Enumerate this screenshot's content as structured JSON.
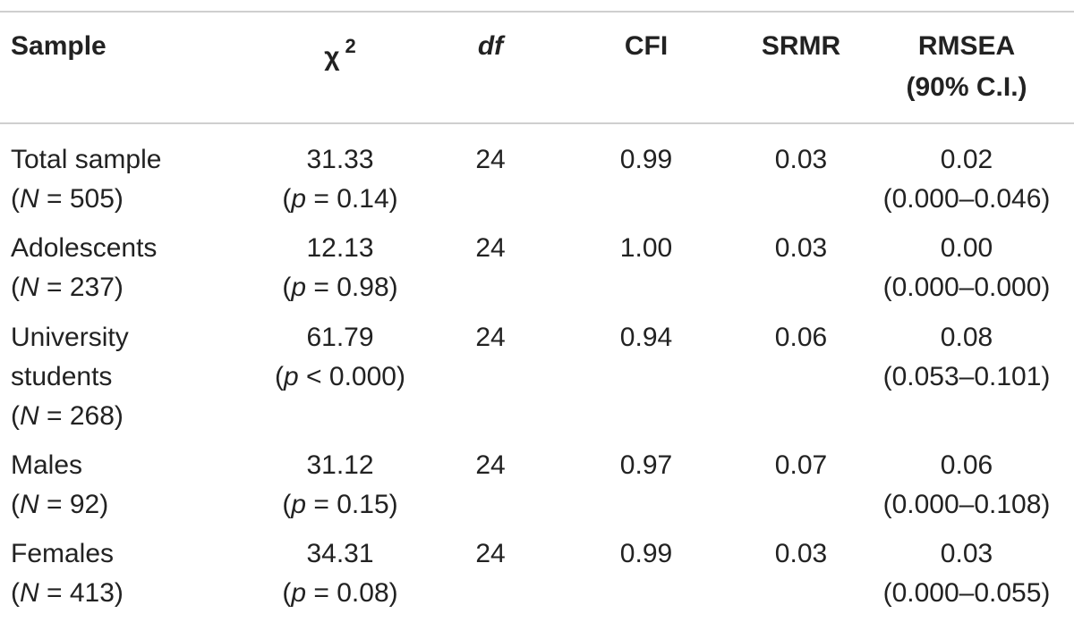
{
  "table": {
    "header": {
      "sample": "Sample",
      "chi2": "χ",
      "chi2_sup": "2",
      "df": "df",
      "cfi": "CFI",
      "srmr": "SRMR",
      "rmsea_line1": "RMSEA",
      "rmsea_line2": "(90% C.I.)"
    },
    "rows": [
      {
        "sample_lines": [
          "Total sample",
          "(N = 505)"
        ],
        "chi2": "31.33",
        "chi2_p": "(p = 0.14)",
        "df": "24",
        "cfi": "0.99",
        "srmr": "0.03",
        "rmsea": "0.02",
        "rmsea_ci": "(0.000–0.046)"
      },
      {
        "sample_lines": [
          "Adolescents",
          "(N = 237)"
        ],
        "chi2": "12.13",
        "chi2_p": "(p = 0.98)",
        "df": "24",
        "cfi": "1.00",
        "srmr": "0.03",
        "rmsea": "0.00",
        "rmsea_ci": "(0.000–0.000)"
      },
      {
        "sample_lines": [
          "University",
          "students",
          "(N = 268)"
        ],
        "chi2": "61.79",
        "chi2_p": "(p < 0.000)",
        "df": "24",
        "cfi": "0.94",
        "srmr": "0.06",
        "rmsea": "0.08",
        "rmsea_ci": "(0.053–0.101)"
      },
      {
        "sample_lines": [
          "Males",
          "(N = 92)"
        ],
        "chi2": "31.12",
        "chi2_p": "(p = 0.15)",
        "df": "24",
        "cfi": "0.97",
        "srmr": "0.07",
        "rmsea": "0.06",
        "rmsea_ci": "(0.000–0.108)"
      },
      {
        "sample_lines": [
          "Females",
          "(N = 413)"
        ],
        "chi2": "34.31",
        "chi2_p": "(p = 0.08)",
        "df": "24",
        "cfi": "0.99",
        "srmr": "0.03",
        "rmsea": "0.03",
        "rmsea_ci": "(0.000–0.055)"
      }
    ]
  }
}
